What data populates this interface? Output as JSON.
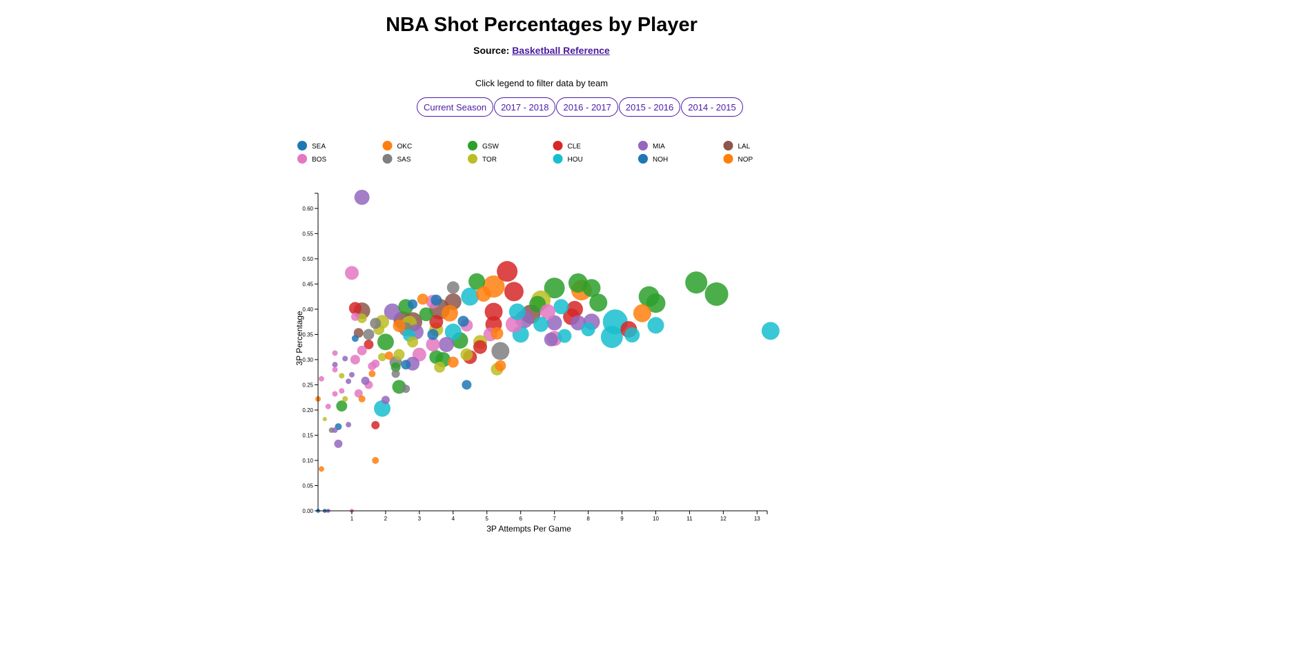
{
  "header": {
    "title": "NBA Shot Percentages by Player",
    "source_prefix": "Source:",
    "source_link": "Basketball Reference",
    "hint": "Click legend to filter data by team"
  },
  "seasons": [
    "Current Season",
    "2017 - 2018",
    "2016 - 2017",
    "2015 - 2016",
    "2014 - 2015"
  ],
  "colors": {
    "accent": "#4a1aa8",
    "link": "#4a1a9e"
  },
  "chart_data": {
    "type": "scatter",
    "title": "",
    "xlabel": "3P Attempts Per Game",
    "ylabel": "3P Percentage",
    "xlim": [
      0,
      13.3
    ],
    "ylim": [
      0,
      0.63
    ],
    "xticks": [
      1,
      2,
      3,
      4,
      5,
      6,
      7,
      8,
      9,
      10,
      11,
      12,
      13
    ],
    "xtick_labels": [
      "1",
      "2",
      "3",
      "4",
      "5",
      "6",
      "7",
      "8",
      "9",
      "10",
      "11",
      "12",
      "13"
    ],
    "yticks": [
      0,
      0.05,
      0.1,
      0.15,
      0.2,
      0.25,
      0.3,
      0.35,
      0.4,
      0.45,
      0.5,
      0.55,
      0.6
    ],
    "ytick_labels": [
      "0.00",
      "0.05",
      "0.10",
      "0.15",
      "0.20",
      "0.25",
      "0.30",
      "0.35",
      "0.40",
      "0.45",
      "0.50",
      "0.55",
      "0.60"
    ],
    "grid": false,
    "legend_position": "top",
    "legend": [
      {
        "team": "SEA",
        "color": "#1f77b4"
      },
      {
        "team": "OKC",
        "color": "#ff7f0e"
      },
      {
        "team": "GSW",
        "color": "#2ca02c"
      },
      {
        "team": "CLE",
        "color": "#d62728"
      },
      {
        "team": "MIA",
        "color": "#9467bd"
      },
      {
        "team": "LAL",
        "color": "#8c564b"
      },
      {
        "team": "BOS",
        "color": "#e377c2"
      },
      {
        "team": "SAS",
        "color": "#7f7f7f"
      },
      {
        "team": "TOR",
        "color": "#bcbd22"
      },
      {
        "team": "HOU",
        "color": "#17becf"
      },
      {
        "team": "NOH",
        "color": "#1f77b4"
      },
      {
        "team": "NOP",
        "color": "#ff7f0e"
      }
    ],
    "points": [
      {
        "team": "MIA",
        "x": 1.3,
        "y": 0.622,
        "size": 11
      },
      {
        "team": "BOS",
        "x": 1.0,
        "y": 0.472,
        "size": 10
      },
      {
        "team": "CLE",
        "x": 5.6,
        "y": 0.475,
        "size": 15
      },
      {
        "team": "GSW",
        "x": 4.7,
        "y": 0.455,
        "size": 12
      },
      {
        "team": "OKC",
        "x": 5.2,
        "y": 0.445,
        "size": 16
      },
      {
        "team": "SAS",
        "x": 4.0,
        "y": 0.443,
        "size": 9
      },
      {
        "team": "GSW",
        "x": 7.0,
        "y": 0.442,
        "size": 15
      },
      {
        "team": "GSW",
        "x": 7.7,
        "y": 0.452,
        "size": 14
      },
      {
        "team": "GSW",
        "x": 8.1,
        "y": 0.442,
        "size": 13
      },
      {
        "team": "OKC",
        "x": 7.8,
        "y": 0.438,
        "size": 15
      },
      {
        "team": "GSW",
        "x": 11.2,
        "y": 0.453,
        "size": 16
      },
      {
        "team": "GSW",
        "x": 11.8,
        "y": 0.43,
        "size": 17
      },
      {
        "team": "GSW",
        "x": 9.8,
        "y": 0.425,
        "size": 15
      },
      {
        "team": "GSW",
        "x": 10.0,
        "y": 0.412,
        "size": 14
      },
      {
        "team": "HOU",
        "x": 13.4,
        "y": 0.357,
        "size": 13
      },
      {
        "team": "OKC",
        "x": 9.6,
        "y": 0.392,
        "size": 13
      },
      {
        "team": "HOU",
        "x": 10.0,
        "y": 0.368,
        "size": 12
      },
      {
        "team": "HOU",
        "x": 8.8,
        "y": 0.375,
        "size": 18
      },
      {
        "team": "HOU",
        "x": 8.7,
        "y": 0.345,
        "size": 16
      },
      {
        "team": "HOU",
        "x": 9.3,
        "y": 0.349,
        "size": 11
      },
      {
        "team": "CLE",
        "x": 9.2,
        "y": 0.36,
        "size": 12
      },
      {
        "team": "GSW",
        "x": 8.3,
        "y": 0.413,
        "size": 13
      },
      {
        "team": "CLE",
        "x": 7.6,
        "y": 0.4,
        "size": 12
      },
      {
        "team": "HOU",
        "x": 7.2,
        "y": 0.405,
        "size": 11
      },
      {
        "team": "CLE",
        "x": 7.5,
        "y": 0.385,
        "size": 12
      },
      {
        "team": "MIA",
        "x": 7.7,
        "y": 0.373,
        "size": 11
      },
      {
        "team": "MIA",
        "x": 8.1,
        "y": 0.375,
        "size": 12
      },
      {
        "team": "HOU",
        "x": 8.0,
        "y": 0.36,
        "size": 10
      },
      {
        "team": "HOU",
        "x": 7.3,
        "y": 0.347,
        "size": 10
      },
      {
        "team": "BOS",
        "x": 7.0,
        "y": 0.342,
        "size": 11
      },
      {
        "team": "MIA",
        "x": 6.9,
        "y": 0.34,
        "size": 10
      },
      {
        "team": "MIA",
        "x": 7.0,
        "y": 0.373,
        "size": 11
      },
      {
        "team": "BOS",
        "x": 6.8,
        "y": 0.395,
        "size": 11
      },
      {
        "team": "TOR",
        "x": 6.6,
        "y": 0.418,
        "size": 14
      },
      {
        "team": "LAL",
        "x": 6.3,
        "y": 0.39,
        "size": 14
      },
      {
        "team": "CLE",
        "x": 5.8,
        "y": 0.435,
        "size": 14
      },
      {
        "team": "GSW",
        "x": 6.5,
        "y": 0.41,
        "size": 12
      },
      {
        "team": "MIA",
        "x": 6.1,
        "y": 0.38,
        "size": 13
      },
      {
        "team": "HOU",
        "x": 6.0,
        "y": 0.35,
        "size": 12
      },
      {
        "team": "BOS",
        "x": 5.8,
        "y": 0.37,
        "size": 12
      },
      {
        "team": "HOU",
        "x": 6.6,
        "y": 0.37,
        "size": 11
      },
      {
        "team": "HOU",
        "x": 5.9,
        "y": 0.395,
        "size": 12
      },
      {
        "team": "CLE",
        "x": 5.2,
        "y": 0.395,
        "size": 13
      },
      {
        "team": "CLE",
        "x": 5.2,
        "y": 0.37,
        "size": 12
      },
      {
        "team": "SAS",
        "x": 5.4,
        "y": 0.317,
        "size": 13
      },
      {
        "team": "TOR",
        "x": 5.3,
        "y": 0.281,
        "size": 9
      },
      {
        "team": "OKC",
        "x": 5.4,
        "y": 0.288,
        "size": 8
      },
      {
        "team": "BOS",
        "x": 5.1,
        "y": 0.35,
        "size": 10
      },
      {
        "team": "OKC",
        "x": 5.3,
        "y": 0.352,
        "size": 9
      },
      {
        "team": "TOR",
        "x": 4.8,
        "y": 0.335,
        "size": 10
      },
      {
        "team": "GSW",
        "x": 4.2,
        "y": 0.338,
        "size": 12
      },
      {
        "team": "CLE",
        "x": 4.8,
        "y": 0.325,
        "size": 10
      },
      {
        "team": "CLE",
        "x": 4.5,
        "y": 0.305,
        "size": 10
      },
      {
        "team": "TOR",
        "x": 4.4,
        "y": 0.31,
        "size": 9
      },
      {
        "team": "HOU",
        "x": 4.0,
        "y": 0.355,
        "size": 12
      },
      {
        "team": "SEA",
        "x": 4.4,
        "y": 0.25,
        "size": 7
      },
      {
        "team": "HOU",
        "x": 4.5,
        "y": 0.425,
        "size": 13
      },
      {
        "team": "OKC",
        "x": 4.9,
        "y": 0.43,
        "size": 11
      },
      {
        "team": "SEA",
        "x": 4.3,
        "y": 0.376,
        "size": 8
      },
      {
        "team": "BOS",
        "x": 4.4,
        "y": 0.368,
        "size": 9
      },
      {
        "team": "LAL",
        "x": 4.0,
        "y": 0.415,
        "size": 12
      },
      {
        "team": "OKC",
        "x": 3.9,
        "y": 0.392,
        "size": 12
      },
      {
        "team": "LAL",
        "x": 3.6,
        "y": 0.4,
        "size": 15
      },
      {
        "team": "TOR",
        "x": 3.5,
        "y": 0.36,
        "size": 10
      },
      {
        "team": "OKC",
        "x": 4.0,
        "y": 0.295,
        "size": 8
      },
      {
        "team": "TOR",
        "x": 3.6,
        "y": 0.285,
        "size": 8
      },
      {
        "team": "GSW",
        "x": 3.7,
        "y": 0.3,
        "size": 11
      },
      {
        "team": "GSW",
        "x": 3.5,
        "y": 0.305,
        "size": 10
      },
      {
        "team": "BOS",
        "x": 3.4,
        "y": 0.33,
        "size": 10
      },
      {
        "team": "SEA",
        "x": 3.4,
        "y": 0.35,
        "size": 8
      },
      {
        "team": "MIA",
        "x": 3.8,
        "y": 0.33,
        "size": 11
      },
      {
        "team": "CLE",
        "x": 3.5,
        "y": 0.375,
        "size": 10
      },
      {
        "team": "BOS",
        "x": 3.4,
        "y": 0.415,
        "size": 10
      },
      {
        "team": "SEA",
        "x": 3.5,
        "y": 0.418,
        "size": 8
      },
      {
        "team": "OKC",
        "x": 3.1,
        "y": 0.42,
        "size": 8
      },
      {
        "team": "GSW",
        "x": 3.2,
        "y": 0.39,
        "size": 10
      },
      {
        "team": "LAL",
        "x": 2.8,
        "y": 0.375,
        "size": 14
      },
      {
        "team": "GSW",
        "x": 2.6,
        "y": 0.405,
        "size": 11
      },
      {
        "team": "SEA",
        "x": 2.8,
        "y": 0.41,
        "size": 7
      },
      {
        "team": "MIA",
        "x": 2.2,
        "y": 0.395,
        "size": 12
      },
      {
        "team": "LAL",
        "x": 2.5,
        "y": 0.378,
        "size": 13
      },
      {
        "team": "TOR",
        "x": 2.7,
        "y": 0.372,
        "size": 11
      },
      {
        "team": "OKC",
        "x": 2.4,
        "y": 0.367,
        "size": 9
      },
      {
        "team": "SAS",
        "x": 2.6,
        "y": 0.36,
        "size": 10
      },
      {
        "team": "HOU",
        "x": 2.7,
        "y": 0.348,
        "size": 9
      },
      {
        "team": "TOR",
        "x": 2.8,
        "y": 0.335,
        "size": 8
      },
      {
        "team": "MIA",
        "x": 2.9,
        "y": 0.355,
        "size": 11
      },
      {
        "team": "BOS",
        "x": 3.0,
        "y": 0.31,
        "size": 10
      },
      {
        "team": "MIA",
        "x": 2.8,
        "y": 0.292,
        "size": 10
      },
      {
        "team": "SEA",
        "x": 2.6,
        "y": 0.29,
        "size": 7
      },
      {
        "team": "TOR",
        "x": 2.4,
        "y": 0.31,
        "size": 8
      },
      {
        "team": "SAS",
        "x": 2.3,
        "y": 0.295,
        "size": 9
      },
      {
        "team": "GSW",
        "x": 2.3,
        "y": 0.285,
        "size": 7
      },
      {
        "team": "SAS",
        "x": 2.3,
        "y": 0.272,
        "size": 6
      },
      {
        "team": "GSW",
        "x": 2.4,
        "y": 0.246,
        "size": 10
      },
      {
        "team": "SAS",
        "x": 2.6,
        "y": 0.242,
        "size": 6
      },
      {
        "team": "HOU",
        "x": 1.9,
        "y": 0.203,
        "size": 12
      },
      {
        "team": "MIA",
        "x": 2.0,
        "y": 0.22,
        "size": 6
      },
      {
        "team": "GSW",
        "x": 2.0,
        "y": 0.335,
        "size": 12
      },
      {
        "team": "CLE",
        "x": 1.5,
        "y": 0.33,
        "size": 7
      },
      {
        "team": "TOR",
        "x": 1.8,
        "y": 0.36,
        "size": 8
      },
      {
        "team": "TOR",
        "x": 1.9,
        "y": 0.375,
        "size": 10
      },
      {
        "team": "SAS",
        "x": 1.7,
        "y": 0.372,
        "size": 8
      },
      {
        "team": "SAS",
        "x": 1.5,
        "y": 0.35,
        "size": 8
      },
      {
        "team": "LAL",
        "x": 1.3,
        "y": 0.397,
        "size": 12
      },
      {
        "team": "CLE",
        "x": 1.1,
        "y": 0.402,
        "size": 9
      },
      {
        "team": "TOR",
        "x": 1.3,
        "y": 0.382,
        "size": 7
      },
      {
        "team": "BOS",
        "x": 1.1,
        "y": 0.385,
        "size": 6
      },
      {
        "team": "LAL",
        "x": 1.2,
        "y": 0.353,
        "size": 7
      },
      {
        "team": "SEA",
        "x": 1.1,
        "y": 0.342,
        "size": 5
      },
      {
        "team": "BOS",
        "x": 1.3,
        "y": 0.318,
        "size": 7
      },
      {
        "team": "BOS",
        "x": 1.1,
        "y": 0.3,
        "size": 7
      },
      {
        "team": "BOS",
        "x": 0.5,
        "y": 0.313,
        "size": 4
      },
      {
        "team": "MIA",
        "x": 0.8,
        "y": 0.302,
        "size": 4
      },
      {
        "team": "MIA",
        "x": 0.5,
        "y": 0.29,
        "size": 4
      },
      {
        "team": "BOS",
        "x": 0.5,
        "y": 0.28,
        "size": 4
      },
      {
        "team": "TOR",
        "x": 0.7,
        "y": 0.268,
        "size": 4
      },
      {
        "team": "MIA",
        "x": 1.0,
        "y": 0.27,
        "size": 4
      },
      {
        "team": "MIA",
        "x": 0.9,
        "y": 0.257,
        "size": 4
      },
      {
        "team": "BOS",
        "x": 0.1,
        "y": 0.262,
        "size": 4
      },
      {
        "team": "BOS",
        "x": 0.7,
        "y": 0.238,
        "size": 4
      },
      {
        "team": "BOS",
        "x": 0.5,
        "y": 0.232,
        "size": 4
      },
      {
        "team": "TOR",
        "x": 0.8,
        "y": 0.222,
        "size": 4
      },
      {
        "team": "OKC",
        "x": 0.0,
        "y": 0.222,
        "size": 4
      },
      {
        "team": "GSW",
        "x": 0.7,
        "y": 0.208,
        "size": 8
      },
      {
        "team": "BOS",
        "x": 0.3,
        "y": 0.207,
        "size": 4
      },
      {
        "team": "TOR",
        "x": 0.2,
        "y": 0.182,
        "size": 3
      },
      {
        "team": "SEA",
        "x": 0.6,
        "y": 0.167,
        "size": 5
      },
      {
        "team": "MIA",
        "x": 0.9,
        "y": 0.171,
        "size": 4
      },
      {
        "team": "SAS",
        "x": 0.4,
        "y": 0.16,
        "size": 4
      },
      {
        "team": "MIA",
        "x": 0.5,
        "y": 0.16,
        "size": 4
      },
      {
        "team": "MIA",
        "x": 0.6,
        "y": 0.133,
        "size": 6
      },
      {
        "team": "OKC",
        "x": 0.1,
        "y": 0.083,
        "size": 4
      },
      {
        "team": "OKC",
        "x": 1.7,
        "y": 0.1,
        "size": 5
      },
      {
        "team": "CLE",
        "x": 1.7,
        "y": 0.17,
        "size": 6
      },
      {
        "team": "BOS",
        "x": 1.5,
        "y": 0.25,
        "size": 6
      },
      {
        "team": "OKC",
        "x": 1.3,
        "y": 0.222,
        "size": 5
      },
      {
        "team": "BOS",
        "x": 1.2,
        "y": 0.233,
        "size": 6
      },
      {
        "team": "MIA",
        "x": 1.4,
        "y": 0.258,
        "size": 6
      },
      {
        "team": "BOS",
        "x": 1.6,
        "y": 0.287,
        "size": 6
      },
      {
        "team": "OKC",
        "x": 1.6,
        "y": 0.272,
        "size": 5
      },
      {
        "team": "BOS",
        "x": 1.7,
        "y": 0.292,
        "size": 6
      },
      {
        "team": "TOR",
        "x": 1.9,
        "y": 0.305,
        "size": 6
      },
      {
        "team": "OKC",
        "x": 2.1,
        "y": 0.308,
        "size": 6
      },
      {
        "team": "SEA",
        "x": 0.0,
        "y": 0.0,
        "size": 3
      },
      {
        "team": "SEA",
        "x": 0.2,
        "y": 0.0,
        "size": 3
      },
      {
        "team": "MIA",
        "x": 0.3,
        "y": 0.0,
        "size": 3
      },
      {
        "team": "BOS",
        "x": 1.0,
        "y": 0.0,
        "size": 3
      }
    ]
  }
}
